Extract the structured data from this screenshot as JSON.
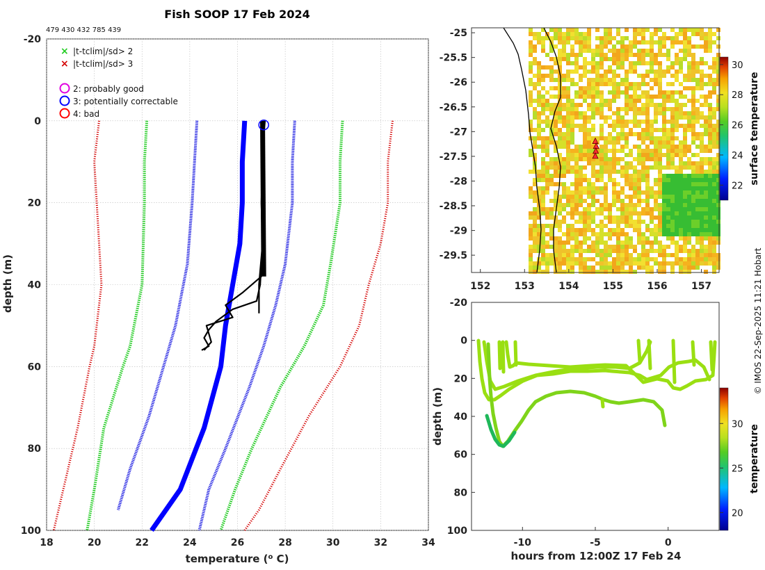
{
  "header": {
    "title": "Fish SOOP 17 Feb 2024",
    "ids": "479 430 432 785 439",
    "copyright": "© IMOS 22-Sep-2025 11:21 Hobart"
  },
  "legend": {
    "sd2": "|t-tclim|/sd> 2",
    "sd3": "|t-tclim|/sd> 3",
    "flag2": "2: probably good",
    "flag3": "3: potentially correctable",
    "flag4": "4: bad"
  },
  "colors": {
    "sd3": "#d40000",
    "sd2": "#22cc22",
    "sd1": "#1010e0",
    "clim": "#0000ff",
    "obs": "#000000",
    "flag2": "#e000e0",
    "flag3": "#0000ff",
    "flag4": "#ff0000",
    "grid": "#bbbbbb"
  },
  "chart_data": [
    {
      "type": "line",
      "name": "profile",
      "xlabel": "temperature (° C)",
      "ylabel": "depth (m)",
      "xlim": [
        18,
        34
      ],
      "ylim": [
        100,
        -20
      ],
      "xticks": [
        "18",
        "20",
        "22",
        "24",
        "26",
        "28",
        "30",
        "32",
        "34"
      ],
      "yticks": [
        "-20",
        "0",
        "20",
        "40",
        "60",
        "80",
        "100"
      ],
      "ytick_values": [
        -20,
        0,
        20,
        40,
        60,
        80,
        100
      ],
      "series": [
        {
          "name": "clim -3sd",
          "style": "sd3",
          "points": [
            [
              20.2,
              0
            ],
            [
              20.0,
              10
            ],
            [
              20.1,
              20
            ],
            [
              20.3,
              40
            ],
            [
              20.0,
              55
            ],
            [
              19.8,
              60
            ],
            [
              19.3,
              75
            ],
            [
              18.7,
              90
            ],
            [
              18.3,
              100
            ]
          ]
        },
        {
          "name": "clim -2sd",
          "style": "sd2",
          "points": [
            [
              22.2,
              0
            ],
            [
              22.1,
              10
            ],
            [
              22.1,
              20
            ],
            [
              22.0,
              40
            ],
            [
              21.5,
              55
            ],
            [
              21.2,
              60
            ],
            [
              20.4,
              75
            ],
            [
              20.0,
              90
            ],
            [
              19.7,
              100
            ]
          ]
        },
        {
          "name": "clim -1sd",
          "style": "sd1",
          "points": [
            [
              24.3,
              0
            ],
            [
              24.2,
              10
            ],
            [
              24.1,
              20
            ],
            [
              23.9,
              35
            ],
            [
              23.4,
              50
            ],
            [
              23.0,
              58
            ],
            [
              22.3,
              72
            ],
            [
              21.5,
              85
            ],
            [
              21.0,
              95
            ]
          ]
        },
        {
          "name": "clim +1sd",
          "style": "sd1",
          "points": [
            [
              28.4,
              0
            ],
            [
              28.3,
              10
            ],
            [
              28.3,
              20
            ],
            [
              28.0,
              35
            ],
            [
              27.6,
              45
            ],
            [
              27.1,
              55
            ],
            [
              26.5,
              65
            ],
            [
              25.5,
              80
            ],
            [
              24.8,
              90
            ],
            [
              24.4,
              100
            ]
          ]
        },
        {
          "name": "clim +2sd",
          "style": "sd2",
          "points": [
            [
              30.4,
              0
            ],
            [
              30.3,
              10
            ],
            [
              30.3,
              20
            ],
            [
              29.9,
              35
            ],
            [
              29.6,
              45
            ],
            [
              28.8,
              55
            ],
            [
              27.8,
              65
            ],
            [
              26.6,
              80
            ],
            [
              25.9,
              90
            ],
            [
              25.3,
              100
            ]
          ]
        },
        {
          "name": "clim +3sd",
          "style": "sd3",
          "points": [
            [
              32.5,
              0
            ],
            [
              32.3,
              10
            ],
            [
              32.3,
              20
            ],
            [
              32.0,
              30
            ],
            [
              31.5,
              40
            ],
            [
              31.1,
              50
            ],
            [
              30.3,
              60
            ],
            [
              29.0,
              72
            ],
            [
              27.8,
              85
            ],
            [
              26.9,
              95
            ],
            [
              26.3,
              100
            ]
          ]
        },
        {
          "name": "climatology",
          "style": "clim",
          "points": [
            [
              26.3,
              0
            ],
            [
              26.2,
              10
            ],
            [
              26.2,
              20
            ],
            [
              26.1,
              30
            ],
            [
              25.8,
              40
            ],
            [
              25.5,
              50
            ],
            [
              25.3,
              60
            ],
            [
              24.6,
              75
            ],
            [
              23.6,
              90
            ],
            [
              22.4,
              100
            ]
          ]
        },
        {
          "name": "obs 1",
          "style": "obs",
          "points": [
            [
              27.05,
              1
            ],
            [
              27.1,
              10
            ],
            [
              27.1,
              20
            ],
            [
              27.05,
              30
            ],
            [
              26.95,
              40
            ],
            [
              26.8,
              44
            ],
            [
              25.8,
              46
            ],
            [
              25.1,
              49
            ],
            [
              24.8,
              51
            ],
            [
              24.6,
              53
            ],
            [
              24.8,
              55
            ],
            [
              24.5,
              56
            ]
          ]
        },
        {
          "name": "obs 2",
          "style": "obs",
          "points": [
            [
              27.15,
              0
            ],
            [
              27.0,
              10
            ],
            [
              27.05,
              20
            ],
            [
              27.1,
              30
            ],
            [
              27.0,
              38
            ],
            [
              26.2,
              42
            ],
            [
              25.5,
              45
            ],
            [
              25.8,
              48
            ],
            [
              24.7,
              50
            ],
            [
              24.9,
              54
            ],
            [
              24.6,
              56
            ]
          ]
        },
        {
          "name": "obs 3",
          "style": "obs",
          "points": [
            [
              27.0,
              0
            ],
            [
              27.05,
              10
            ],
            [
              27.0,
              20
            ],
            [
              27.05,
              30
            ],
            [
              26.9,
              40
            ],
            [
              26.9,
              47
            ]
          ]
        }
      ],
      "flag_marker": {
        "x": 27.1,
        "y": 1
      }
    },
    {
      "type": "heatmap",
      "name": "map",
      "colorbar_label": "surface temperature",
      "xlim": [
        151.8,
        157.4
      ],
      "ylim": [
        -29.85,
        -24.9
      ],
      "xticks": [
        "152",
        "153",
        "154",
        "155",
        "156",
        "157"
      ],
      "yticks": [
        "-25",
        "-25.5",
        "-26",
        "-26.5",
        "-27",
        "-27.5",
        "-28",
        "-28.5",
        "-29",
        "-29.5"
      ],
      "cb_ticks": [
        "22",
        "24",
        "26",
        "28",
        "30"
      ],
      "cb_range": [
        21.0,
        30.5
      ],
      "track": [
        [
          154.6,
          -27.2
        ],
        [
          154.62,
          -27.3
        ],
        [
          154.61,
          -27.4
        ],
        [
          154.6,
          -27.5
        ]
      ]
    },
    {
      "type": "line",
      "name": "timeseries",
      "xlabel": "hours from 12:00Z 17 Feb 24",
      "ylabel": "depth (m)",
      "colorbar_label": "temperature",
      "xlim": [
        -13.5,
        3.5
      ],
      "ylim": [
        100,
        -20
      ],
      "xticks": [
        "-10",
        "-5",
        "0"
      ],
      "xtick_values": [
        -10,
        -5,
        0
      ],
      "yticks": [
        "-20",
        "0",
        "20",
        "40",
        "60",
        "80",
        "100"
      ],
      "cb_ticks": [
        "20",
        "25",
        "30"
      ],
      "cb_range": [
        18,
        34
      ]
    }
  ]
}
